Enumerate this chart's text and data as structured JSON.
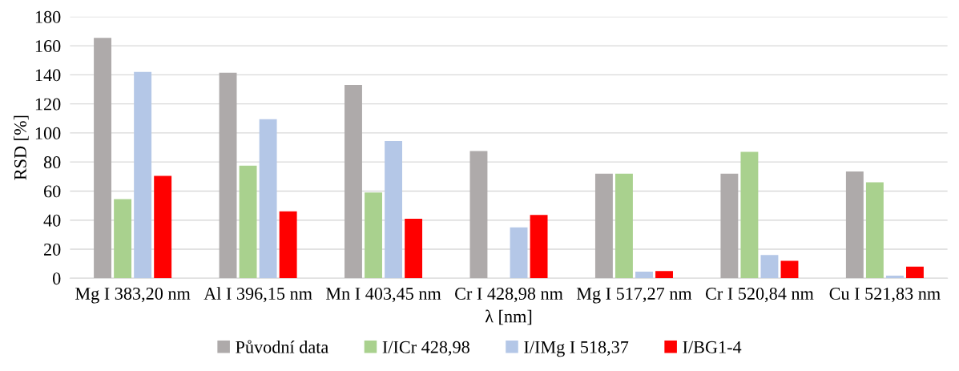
{
  "chart_data": {
    "type": "bar",
    "xlabel": "λ [nm]",
    "ylabel": "RSD [%]",
    "categories": [
      "Mg I 383,20 nm",
      "Al I 396,15 nm",
      "Mn I 403,45 nm",
      "Cr I 428,98 nm",
      "Mg I 517,27 nm",
      "Cr I 520,84 nm",
      "Cu I 521,83 nm"
    ],
    "series": [
      {
        "name": "Původní data",
        "color": "#aeaaaa",
        "values": [
          165.5,
          141.5,
          133,
          87.5,
          72,
          72,
          73.5
        ]
      },
      {
        "name": "I/ICr 428,98",
        "color": "#a9d18e",
        "values": [
          54.5,
          77.5,
          59,
          null,
          72,
          87,
          66
        ]
      },
      {
        "name": "I/IMg I 518,37",
        "color": "#b4c7e7",
        "values": [
          142,
          109.5,
          94.5,
          35,
          4.5,
          16,
          1.8
        ]
      },
      {
        "name": "I/BG1-4",
        "color": "#ff0000",
        "values": [
          70.5,
          46,
          41,
          43.5,
          5,
          12,
          8
        ]
      }
    ],
    "ylim": [
      0,
      180
    ],
    "yticks": [
      0,
      20,
      40,
      60,
      80,
      100,
      120,
      140,
      160,
      180
    ],
    "grid": "y",
    "legend": "bottom"
  }
}
